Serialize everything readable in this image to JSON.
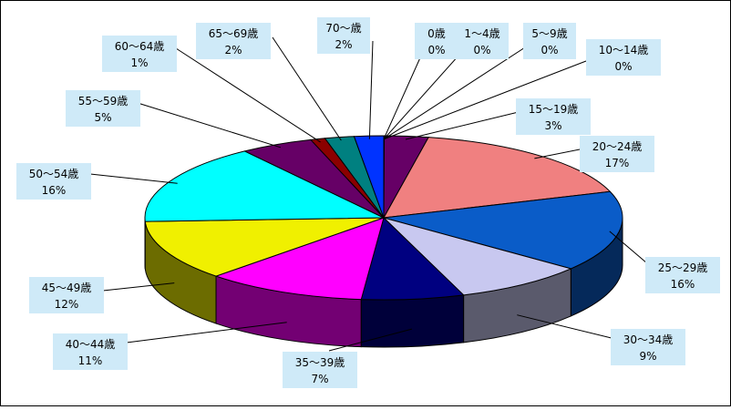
{
  "chart_data": {
    "type": "pie",
    "title": "",
    "categories": [
      "0歳",
      "1〜4歳",
      "5〜9歳",
      "10〜14歳",
      "15〜19歳",
      "20〜24歳",
      "25〜29歳",
      "30〜34歳",
      "35〜39歳",
      "40〜44歳",
      "45〜49歳",
      "50〜54歳",
      "55〜59歳",
      "60〜64歳",
      "65〜69歳",
      "70〜歳"
    ],
    "values": [
      0,
      0,
      0,
      0,
      3,
      17,
      16,
      9,
      7,
      11,
      12,
      16,
      5,
      1,
      2,
      2
    ],
    "value_labels": [
      "0%",
      "0%",
      "0%",
      "0%",
      "3%",
      "17%",
      "16%",
      "9%",
      "7%",
      "11%",
      "12%",
      "16%",
      "5%",
      "1%",
      "2%",
      "2%"
    ],
    "colors": [
      "#4b0a5a",
      "#4b0a5a",
      "#4b0a5a",
      "#4b0a5a",
      "#660066",
      "#f08080",
      "#0a5cc8",
      "#c8c8f0",
      "#000080",
      "#ff00ff",
      "#f0f000",
      "#00ffff",
      "#660066",
      "#8b0000",
      "#008080",
      "#0033ff"
    ],
    "style": "3d-pie",
    "legend": "none"
  }
}
